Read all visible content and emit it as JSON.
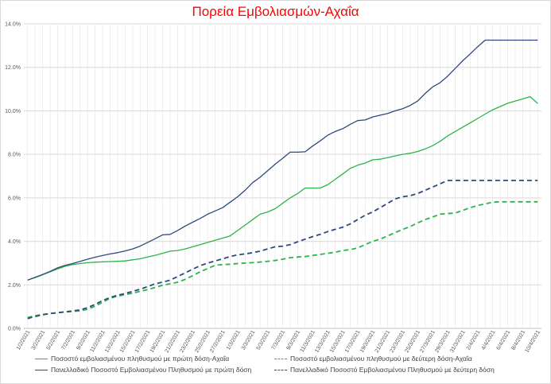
{
  "chart_data": {
    "type": "line",
    "title": "Πορεία Εμβολιασμών-Αχαΐα",
    "xlabel": "",
    "ylabel": "",
    "ylim": [
      0,
      14
    ],
    "ytick_labels": [
      "0.0%",
      "2.0%",
      "4.0%",
      "6.0%",
      "8.0%",
      "10.0%",
      "12.0%",
      "14.0%"
    ],
    "categories": [
      "1/2/2021",
      "2/2/2021",
      "3/2/2021",
      "4/2/2021",
      "5/2/2021",
      "6/2/2021",
      "7/2/2021",
      "8/2/2021",
      "9/2/2021",
      "10/2/2021",
      "11/2/2021",
      "12/2/2021",
      "13/2/2021",
      "14/2/2021",
      "15/2/2021",
      "16/2/2021",
      "17/2/2021",
      "18/2/2021",
      "19/2/2021",
      "20/2/2021",
      "21/2/2021",
      "22/2/2021",
      "23/2/2021",
      "24/2/2021",
      "25/2/2021",
      "26/2/2021",
      "27/2/2021",
      "28/2/2021",
      "1/3/2021",
      "2/3/2021",
      "3/3/2021",
      "4/3/2021",
      "5/3/2021",
      "6/3/2021",
      "7/3/2021",
      "8/3/2021",
      "9/3/2021",
      "10/3/2021",
      "11/3/2021",
      "12/3/2021",
      "13/3/2021",
      "14/3/2021",
      "15/3/2021",
      "16/3/2021",
      "17/3/2021",
      "18/3/2021",
      "19/3/2021",
      "20/3/2021",
      "21/3/2021",
      "22/3/2021",
      "23/3/2021",
      "24/3/2021",
      "25/3/2021",
      "26/3/2021",
      "27/3/2021",
      "28/3/2021",
      "29/3/2021",
      "30/3/2021",
      "31/3/2021",
      "1/4/2021",
      "2/4/2021",
      "3/4/2021",
      "4/4/2021",
      "5/4/2021",
      "6/4/2021",
      "7/4/2021",
      "8/4/2021",
      "9/4/2021",
      "10/4/2021"
    ],
    "tick_labels": [
      "1/2/2021",
      "3/2/2021",
      "5/2/2021",
      "7/2/2021",
      "9/2/2021",
      "11/2/2021",
      "13/2/2021",
      "15/2/2021",
      "17/2/2021",
      "19/2/2021",
      "21/2/2021",
      "23/2/2021",
      "25/2/2021",
      "27/2/2021",
      "1/3/2021",
      "3/3/2021",
      "5/3/2021",
      "7/3/2021",
      "9/3/2021",
      "11/3/2021",
      "13/3/2021",
      "15/3/2021",
      "17/3/2021",
      "19/3/2021",
      "21/3/2021",
      "23/3/2021",
      "25/3/2021",
      "27/3/2021",
      "29/3/2021",
      "31/3/2021",
      "2/4/2021",
      "4/4/2021",
      "6/4/2021",
      "8/4/2021",
      "10/4/2021"
    ],
    "grid": true,
    "legend_position": "bottom",
    "series": [
      {
        "name": "Ποσοστό εμβολιασμένου πληθυσμού με πρώτη δόση-Αχαΐα",
        "color": "#2db34a",
        "dash": false,
        "values": [
          2.22,
          2.33,
          2.46,
          2.6,
          2.73,
          2.85,
          2.93,
          2.98,
          3.02,
          3.04,
          3.06,
          3.07,
          3.08,
          3.1,
          3.15,
          3.2,
          3.28,
          3.36,
          3.45,
          3.55,
          3.58,
          3.65,
          3.75,
          3.85,
          3.95,
          4.05,
          4.15,
          4.25,
          4.5,
          4.75,
          5.0,
          5.25,
          5.35,
          5.5,
          5.75,
          6.0,
          6.2,
          6.45,
          6.45,
          6.45,
          6.6,
          6.85,
          7.1,
          7.35,
          7.5,
          7.6,
          7.75,
          7.78,
          7.85,
          7.93,
          8.0,
          8.05,
          8.13,
          8.25,
          8.4,
          8.6,
          8.85,
          9.05,
          9.25,
          9.45,
          9.65,
          9.85,
          10.05,
          10.2,
          10.35,
          10.45,
          10.55,
          10.65,
          10.34
        ]
      },
      {
        "name": "Ποσοστό εμβολιασμένου πληθυσμού με δεύτερη δόση-Αχαΐα",
        "color": "#2db34a",
        "dash": true,
        "values": [
          0.5,
          0.58,
          0.64,
          0.68,
          0.72,
          0.75,
          0.78,
          0.8,
          0.88,
          1.02,
          1.2,
          1.38,
          1.48,
          1.55,
          1.62,
          1.7,
          1.78,
          1.88,
          1.98,
          2.05,
          2.12,
          2.25,
          2.42,
          2.6,
          2.75,
          2.9,
          2.93,
          2.95,
          2.98,
          3.0,
          3.02,
          3.05,
          3.08,
          3.12,
          3.18,
          3.25,
          3.28,
          3.3,
          3.35,
          3.4,
          3.45,
          3.5,
          3.58,
          3.62,
          3.7,
          3.85,
          4.0,
          4.1,
          4.25,
          4.4,
          4.55,
          4.68,
          4.85,
          5.0,
          5.12,
          5.25,
          5.28,
          5.3,
          5.42,
          5.55,
          5.65,
          5.72,
          5.8,
          5.82,
          5.82,
          5.82,
          5.82,
          5.82,
          5.82
        ]
      },
      {
        "name": "Πανελλαδικό Ποσοστό Εμβολιασμένου Πληθυσμού με πρώτη δόση",
        "color": "#2e4a7d",
        "dash": false,
        "values": [
          2.22,
          2.35,
          2.48,
          2.62,
          2.78,
          2.9,
          2.98,
          3.08,
          3.18,
          3.27,
          3.35,
          3.42,
          3.48,
          3.56,
          3.65,
          3.78,
          3.95,
          4.12,
          4.3,
          4.32,
          4.5,
          4.7,
          4.88,
          5.05,
          5.25,
          5.4,
          5.55,
          5.8,
          6.05,
          6.35,
          6.7,
          6.95,
          7.25,
          7.55,
          7.82,
          8.1,
          8.1,
          8.12,
          8.38,
          8.62,
          8.88,
          9.05,
          9.18,
          9.38,
          9.55,
          9.58,
          9.72,
          9.8,
          9.88,
          10.0,
          10.1,
          10.25,
          10.45,
          10.8,
          11.1,
          11.3,
          11.6,
          11.95,
          12.3,
          12.62,
          12.95,
          13.25,
          13.25,
          13.25,
          13.25,
          13.25,
          13.25,
          13.25,
          13.25
        ]
      },
      {
        "name": "Πανελλαδικό Ποσοστό Εμβολιασμένου Πληθυσμού με δεύτερη δόση",
        "color": "#2e4a7d",
        "dash": true,
        "values": [
          0.45,
          0.55,
          0.62,
          0.68,
          0.72,
          0.76,
          0.8,
          0.85,
          0.95,
          1.1,
          1.28,
          1.42,
          1.52,
          1.6,
          1.7,
          1.8,
          1.92,
          2.05,
          2.12,
          2.22,
          2.38,
          2.55,
          2.72,
          2.88,
          3.0,
          3.1,
          3.2,
          3.3,
          3.38,
          3.42,
          3.48,
          3.55,
          3.65,
          3.75,
          3.78,
          3.85,
          3.98,
          4.1,
          4.22,
          4.32,
          4.45,
          4.55,
          4.65,
          4.8,
          5.0,
          5.2,
          5.35,
          5.55,
          5.75,
          5.95,
          6.05,
          6.1,
          6.2,
          6.35,
          6.5,
          6.65,
          6.8,
          6.8,
          6.8,
          6.8,
          6.8,
          6.8,
          6.8,
          6.8,
          6.8,
          6.8,
          6.8,
          6.8,
          6.8
        ]
      }
    ]
  }
}
